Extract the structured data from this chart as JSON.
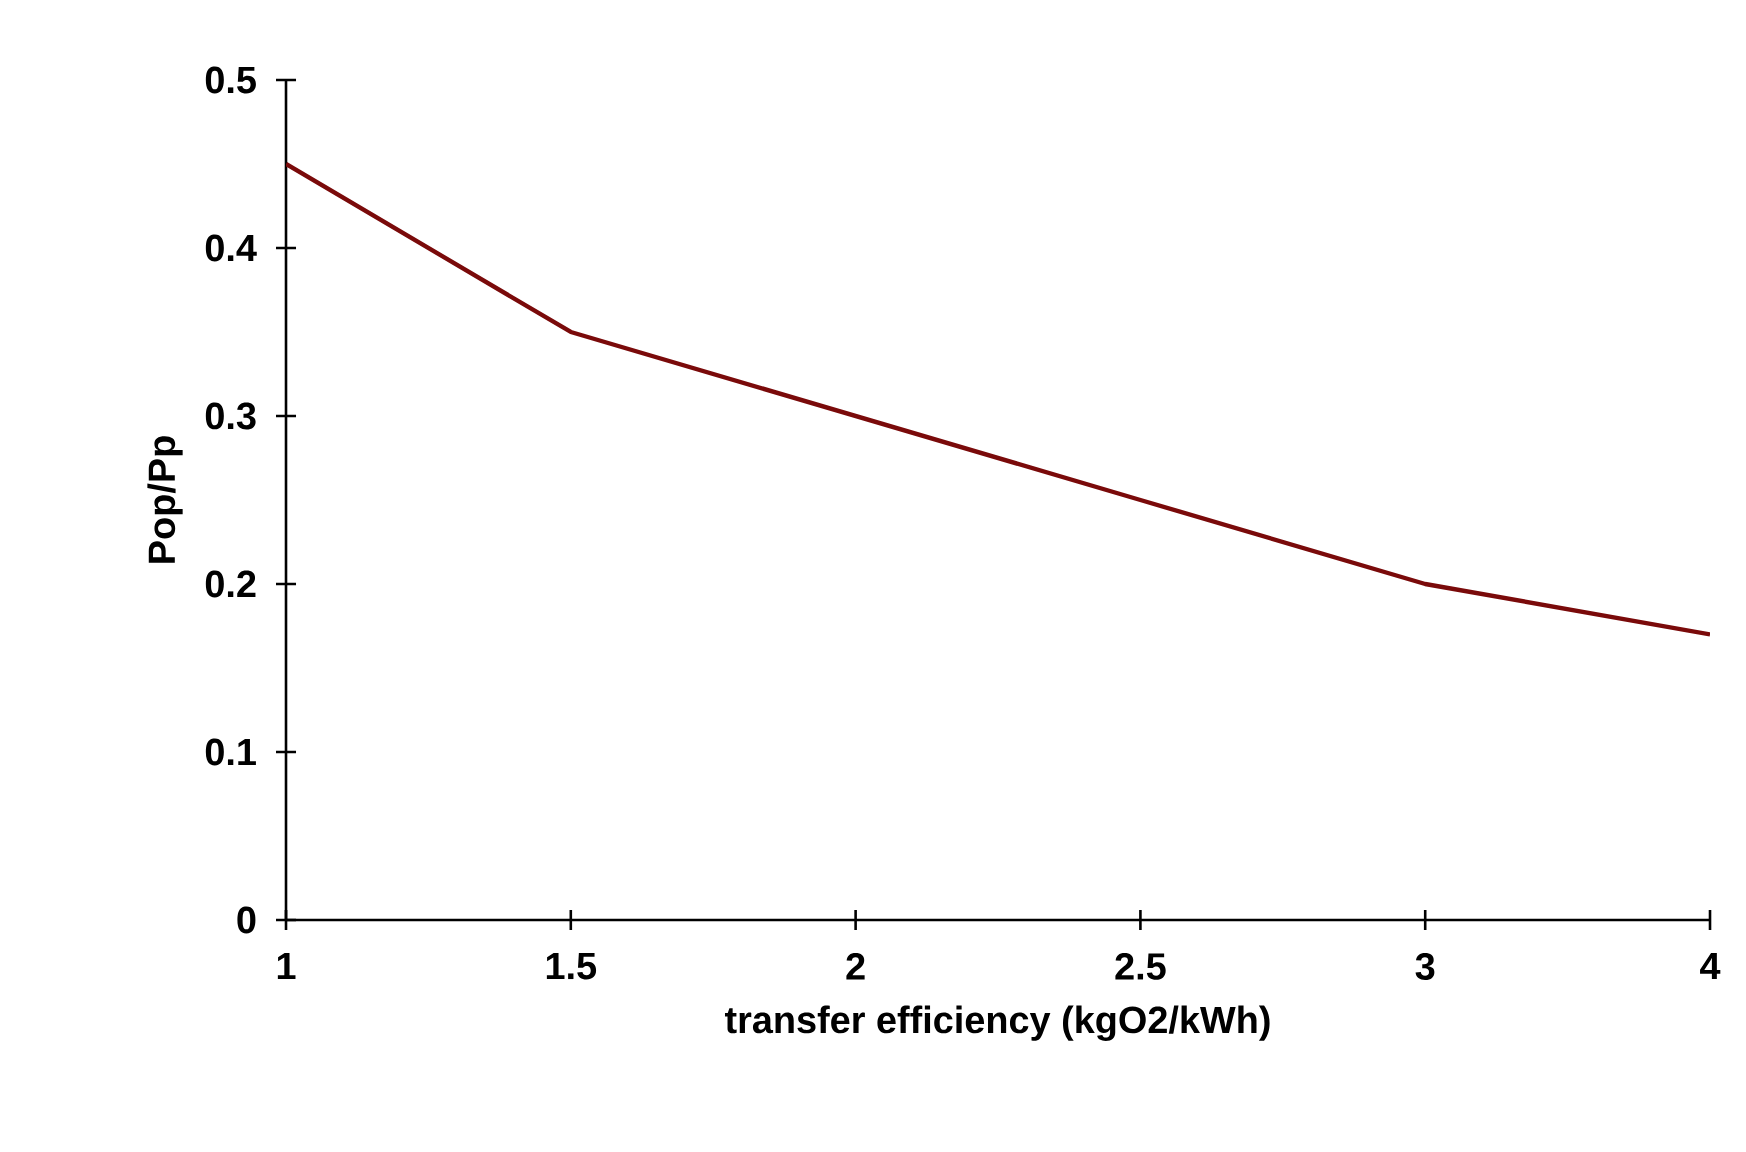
{
  "chart_data": {
    "type": "line",
    "xlabel": "transfer efficiency (kgO2/kWh)",
    "ylabel": "Pop/Pp",
    "categories": [
      "1",
      "1.5",
      "2",
      "2.5",
      "3",
      "4"
    ],
    "series": [
      {
        "color": "#7a0a0a",
        "values": [
          0.45,
          0.35,
          0.3,
          0.25,
          0.2,
          0.17
        ]
      }
    ],
    "ylim": [
      0,
      0.5
    ],
    "yticks": [
      0,
      0.1,
      0.2,
      0.3,
      0.4,
      0.5
    ],
    "grid": false,
    "legend": false,
    "marker": "none",
    "line_style": "solid"
  }
}
